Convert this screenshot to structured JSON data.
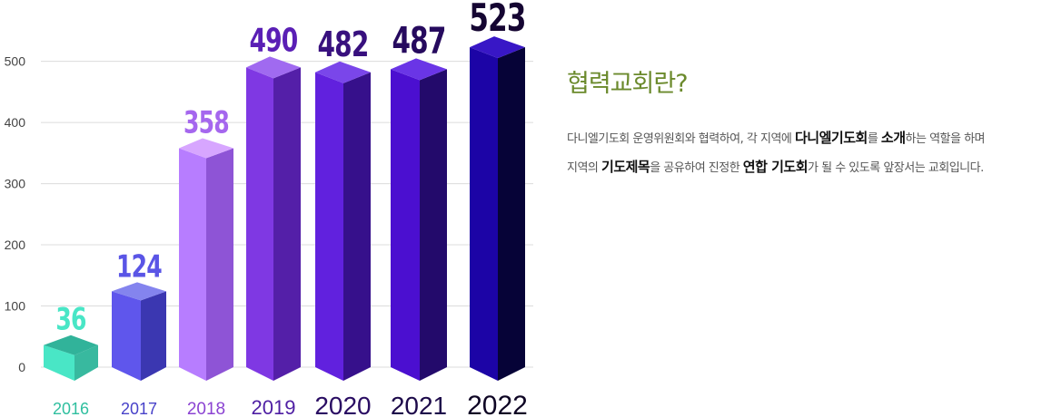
{
  "chart_data": {
    "type": "bar",
    "categories": [
      "2016",
      "2017",
      "2018",
      "2019",
      "2020",
      "2021",
      "2022"
    ],
    "values": [
      36,
      124,
      358,
      490,
      482,
      487,
      523
    ],
    "yticks": [
      "0",
      "100",
      "200",
      "300",
      "400",
      "500"
    ],
    "ylim": [
      0,
      523
    ],
    "grid": true,
    "style": "3d-columns",
    "colors": [
      {
        "front": "#49e6c6",
        "side": "#38b99f",
        "top": "#31b39a",
        "value": "#49e6c6",
        "label": "#2fbf9f"
      },
      {
        "front": "#5f56ec",
        "side": "#3b37b1",
        "top": "#8484ee",
        "value": "#5a55e6",
        "label": "#4842c9"
      },
      {
        "front": "#b77dff",
        "side": "#8e54d6",
        "top": "#d7a6ff",
        "value": "#a567ee",
        "label": "#8b43d2"
      },
      {
        "front": "#7f38e3",
        "side": "#541fa8",
        "top": "#a06af0",
        "value": "#5a1fb5",
        "label": "#4e1ea3"
      },
      {
        "front": "#6121de",
        "side": "#36108b",
        "top": "#7a46ea",
        "value": "#38107e",
        "label": "#2a0d63"
      },
      {
        "front": "#4b0fd0",
        "side": "#230a6b",
        "top": "#6a35e6",
        "value": "#260a5e",
        "label": "#1d0a4a"
      },
      {
        "front": "#1c04a6",
        "side": "#060337",
        "top": "#3817c6",
        "value": "#150532",
        "label": "#0e0524"
      }
    ]
  },
  "description": {
    "title": "협력교회란?",
    "line1_parts": [
      {
        "text": "다니엘기도회 운영위원회와 협력하여, 각 지역에 ",
        "bold": false
      },
      {
        "text": "다니엘기도회",
        "bold": true
      },
      {
        "text": "를 ",
        "bold": false
      },
      {
        "text": "소개",
        "bold": true
      },
      {
        "text": "하는 역할을 하며",
        "bold": false
      }
    ],
    "line2_parts": [
      {
        "text": "지역의 ",
        "bold": false
      },
      {
        "text": "기도제목",
        "bold": true
      },
      {
        "text": "을 공유하여 진정한 ",
        "bold": false
      },
      {
        "text": "연합 기도회",
        "bold": true
      },
      {
        "text": "가 될 수 있도록 앞장서는 교회입니다.",
        "bold": false
      }
    ]
  }
}
